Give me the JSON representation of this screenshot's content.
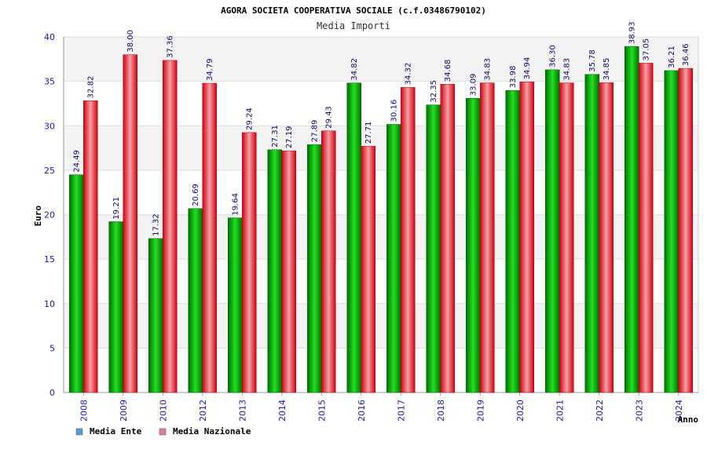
{
  "chart_data": {
    "type": "bar",
    "title": "AGORA SOCIETA COOPERATIVA SOCIALE (c.f.03486790102)",
    "subtitle": "Media Importi",
    "xlabel": "Anno",
    "ylabel": "Euro",
    "ylim": [
      0,
      40
    ],
    "yticks": [
      0,
      5,
      10,
      15,
      20,
      25,
      30,
      35,
      40
    ],
    "categories": [
      "2008",
      "2009",
      "2010",
      "2012",
      "2013",
      "2014",
      "2015",
      "2016",
      "2017",
      "2018",
      "2019",
      "2020",
      "2021",
      "2022",
      "2023",
      "2024"
    ],
    "series": [
      {
        "name": "Media Ente",
        "color": "#00c000",
        "values": [
          24.49,
          19.21,
          17.32,
          20.69,
          19.64,
          27.31,
          27.89,
          34.82,
          30.16,
          32.35,
          33.09,
          33.98,
          36.3,
          35.78,
          38.93,
          36.21
        ],
        "labels": [
          "24.49",
          "19.21",
          "17.32",
          "20.69",
          "19.64",
          "27.31",
          "27.89",
          "34.82",
          "30.16",
          "32.35",
          "33.09",
          "33.98",
          "36.30",
          "35.78",
          "38.93",
          "36.21"
        ]
      },
      {
        "name": "Media Nazionale",
        "color": "#e8202a",
        "values": [
          32.82,
          38.0,
          37.36,
          34.79,
          29.24,
          27.19,
          29.43,
          27.71,
          34.32,
          34.68,
          34.83,
          34.94,
          34.83,
          34.85,
          37.05,
          36.46
        ],
        "labels": [
          "32.82",
          "38.00",
          "37.36",
          "34.79",
          "29.24",
          "27.19",
          "29.43",
          "27.71",
          "34.32",
          "34.68",
          "34.83",
          "34.94",
          "34.83",
          "34.85",
          "37.05",
          "36.46"
        ]
      }
    ],
    "legend": [
      {
        "label": "Media Ente",
        "color": "#5b9bd5"
      },
      {
        "label": "Media Nazionale",
        "color": "#e07ba6"
      }
    ],
    "legend_position": "bottom-left",
    "grid": true
  }
}
